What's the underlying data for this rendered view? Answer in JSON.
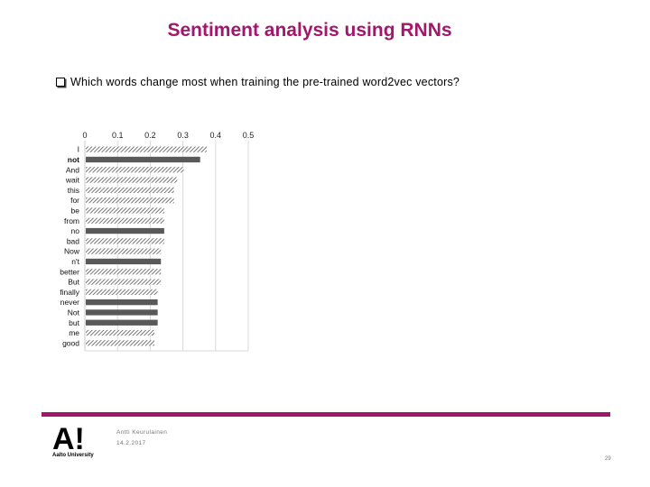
{
  "slide": {
    "title": "Sentiment analysis using RNNs",
    "bullet": "Which words change most when training the pre-trained word2vec vectors?"
  },
  "footer": {
    "logo_text": "A!",
    "university": "Aalto University",
    "author": "Antti Keurulainen",
    "date": "14.2.2017",
    "page": "29"
  },
  "colors": {
    "accent": "#a0176b",
    "bar_solid": "#595959",
    "bar_hatch": "#555555"
  },
  "chart_data": {
    "type": "bar",
    "orientation": "horizontal",
    "x_ticks": [
      "0",
      "0.1",
      "0.2",
      "0.3",
      "0.4",
      "0.5"
    ],
    "xlim": [
      0,
      0.5
    ],
    "grid": true,
    "categories": [
      "I",
      "not",
      "And",
      "wait",
      "this",
      "for",
      "be",
      "from",
      "no",
      "bad",
      "Now",
      "n't",
      "better",
      "But",
      "finally",
      "never",
      "Not",
      "but",
      "me",
      "good"
    ],
    "values": [
      0.37,
      0.35,
      0.3,
      0.28,
      0.27,
      0.27,
      0.24,
      0.24,
      0.24,
      0.24,
      0.23,
      0.23,
      0.23,
      0.23,
      0.22,
      0.22,
      0.22,
      0.22,
      0.21,
      0.21
    ],
    "bold": [
      false,
      true,
      false,
      false,
      false,
      false,
      false,
      false,
      false,
      false,
      false,
      false,
      false,
      false,
      false,
      false,
      false,
      false,
      false,
      false
    ],
    "hatched": [
      true,
      false,
      true,
      true,
      true,
      true,
      true,
      true,
      false,
      true,
      true,
      false,
      true,
      true,
      true,
      false,
      false,
      false,
      true,
      true
    ]
  }
}
